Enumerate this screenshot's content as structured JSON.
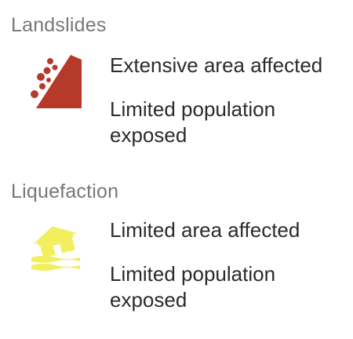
{
  "landslides": {
    "title": "Landslides",
    "icon": "landslide-icon",
    "icon_color": "#b63a2a",
    "area_text": "Extensive area affected",
    "population_text": "Limited population exposed"
  },
  "liquefaction": {
    "title": "Liquefaction",
    "icon": "liquefaction-house-icon",
    "icon_color": "#f2ee5d",
    "area_text": "Limited area affected",
    "population_text": "Limited population exposed"
  }
}
